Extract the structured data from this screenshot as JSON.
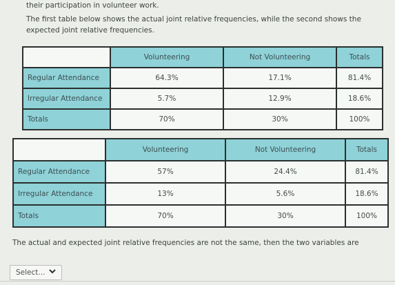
{
  "intro_line": "their participation in volunteer work.",
  "description": "The first table below shows the actual joint relative frequencies, while the second shows the expected joint relative frequencies.",
  "actual_table": {
    "headers": [
      "",
      "Volunteering",
      "Not Volunteering",
      "Totals"
    ],
    "rows": [
      [
        "Regular Attendance",
        "64.3%",
        "17.1%",
        "81.4%"
      ],
      [
        "Irregular Attendance",
        "5.7%",
        "12.9%",
        "18.6%"
      ],
      [
        "Totals",
        "70%",
        "30%",
        "100%"
      ]
    ]
  },
  "expected_table": {
    "headers": [
      "",
      "Volunteering",
      "Not Volunteering",
      "Totals"
    ],
    "rows": [
      [
        "Regular Attendance",
        "57%",
        "24.4%",
        "81.4%"
      ],
      [
        "Irregular Attendance",
        "13%",
        "5.6%",
        "18.6%"
      ],
      [
        "Totals",
        "70%",
        "30%",
        "100%"
      ]
    ]
  },
  "conclusion": "The actual and expected joint relative frequencies are not the same, then the two variables are",
  "dropdown": {
    "value": "Select...",
    "icon": "chevron-down-icon"
  }
}
